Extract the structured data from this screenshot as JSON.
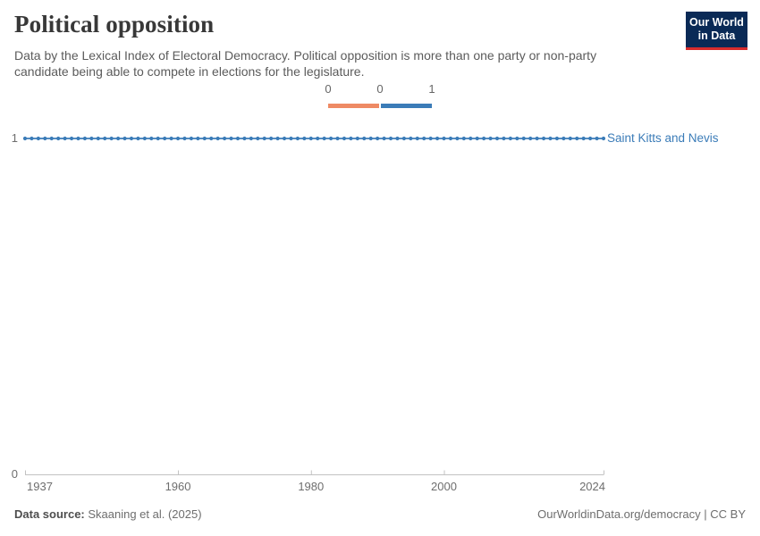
{
  "header": {
    "title": "Political opposition",
    "subtitle_lines": [
      "Data by the Lexical Index of Electoral Democracy. Political opposition is more than one party or non-party",
      "candidate being able to compete in elections for the legislature."
    ],
    "logo": {
      "line1": "Our World",
      "line2": "in Data"
    }
  },
  "colors": {
    "accent_blue": "#3b7cb8",
    "accent_orange": "#ee8a64",
    "logo_navy": "#0a2a56",
    "logo_red": "#d82c2c",
    "axis_gray": "#c2c2c2",
    "label_gray": "#6e6e6e"
  },
  "legend": {
    "tick_labels": [
      "0",
      "0",
      "1"
    ],
    "segments": [
      {
        "from": "0",
        "to": "0",
        "color": "#ee8a64"
      },
      {
        "from": "0",
        "to": "1",
        "color": "#3b7cb8"
      }
    ]
  },
  "chart_data": {
    "type": "line",
    "title": "Political opposition",
    "entity": "Saint Kitts and Nevis",
    "x_start": 1937,
    "x_end": 2024,
    "x_step": 1,
    "values": [
      1,
      1,
      1,
      1,
      1,
      1,
      1,
      1,
      1,
      1,
      1,
      1,
      1,
      1,
      1,
      1,
      1,
      1,
      1,
      1,
      1,
      1,
      1,
      1,
      1,
      1,
      1,
      1,
      1,
      1,
      1,
      1,
      1,
      1,
      1,
      1,
      1,
      1,
      1,
      1,
      1,
      1,
      1,
      1,
      1,
      1,
      1,
      1,
      1,
      1,
      1,
      1,
      1,
      1,
      1,
      1,
      1,
      1,
      1,
      1,
      1,
      1,
      1,
      1,
      1,
      1,
      1,
      1,
      1,
      1,
      1,
      1,
      1,
      1,
      1,
      1,
      1,
      1,
      1,
      1,
      1,
      1,
      1,
      1,
      1,
      1,
      1,
      1
    ],
    "ylim": [
      0,
      1
    ],
    "yticks": [
      1,
      0
    ],
    "xticks": [
      1937,
      1960,
      1980,
      2000,
      2024
    ],
    "grid": false,
    "marker": "circle",
    "line_color": "#3b7cb8",
    "legend_position": "top-center"
  },
  "footer": {
    "source_label": "Data source:",
    "source_value": " Skaaning et al. (2025)",
    "credit": "OurWorldinData.org/democracy | CC BY"
  }
}
